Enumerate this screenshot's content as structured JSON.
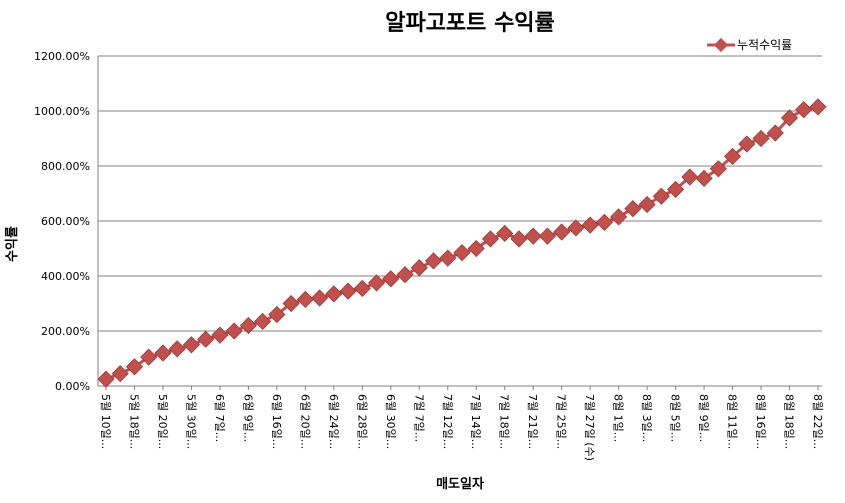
{
  "chart_data": {
    "type": "line",
    "title": "알파고포트 수익률",
    "xlabel": "매도일자",
    "ylabel": "수익률",
    "ylim": [
      0,
      1200
    ],
    "yticks": [
      "0.00%",
      "200.00%",
      "400.00%",
      "600.00%",
      "800.00%",
      "1000.00%",
      "1200.00%"
    ],
    "ytick_values": [
      0,
      200,
      400,
      600,
      800,
      1000,
      1200
    ],
    "grid": true,
    "legend_position": "top-right",
    "categories": [
      "5월 10일...",
      "",
      "5월 18일...",
      "",
      "5월 20일...",
      "",
      "5월 30일...",
      "",
      "6월 7일...",
      "",
      "6월 9일...",
      "",
      "6월 16일...",
      "",
      "6월 20일...",
      "",
      "6월 24일...",
      "",
      "6월 28일...",
      "",
      "6월 30일...",
      "",
      "7월 7일...",
      "",
      "7월 12일...",
      "",
      "7월 14일...",
      "",
      "7월 18일...",
      "",
      "7월 21일...",
      "",
      "7월 25일...",
      "",
      "7월 27일 (수)",
      "",
      "8월 1일...",
      "",
      "8월 3일...",
      "",
      "8월 5일...",
      "",
      "8월 9일...",
      "",
      "8월 11일...",
      "",
      "8월 16일...",
      "",
      "8월 18일...",
      "",
      "8월 22일..."
    ],
    "series": [
      {
        "name": "누적수익률",
        "color": "#C0504D",
        "marker": "diamond",
        "values": [
          25,
          45,
          70,
          105,
          120,
          135,
          150,
          170,
          185,
          200,
          220,
          235,
          260,
          300,
          315,
          320,
          335,
          345,
          355,
          375,
          390,
          405,
          430,
          455,
          465,
          485,
          500,
          535,
          555,
          535,
          545,
          545,
          560,
          575,
          585,
          595,
          615,
          645,
          660,
          690,
          715,
          760,
          755,
          790,
          835,
          880,
          900,
          920,
          975,
          1005,
          1015
        ]
      }
    ]
  }
}
